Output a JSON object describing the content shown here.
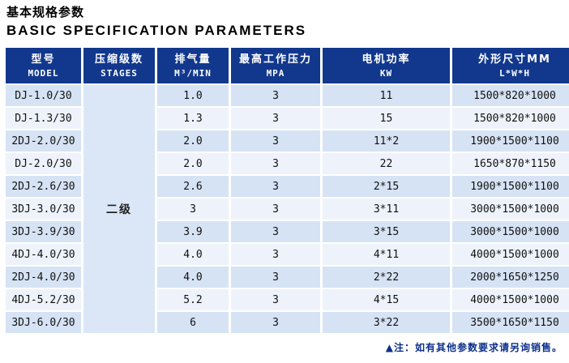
{
  "page": {
    "title_cn": "基本规格参数",
    "title_en": "BASIC SPECIFICATION PARAMETERS"
  },
  "colors": {
    "header_bg": "#12388e",
    "header_text": "#ffffff",
    "row_odd_bg": "#d6e3f4",
    "row_even_bg": "#eef3fb",
    "stages_bg": "#dbe7f7",
    "note_color": "#0b2f8a"
  },
  "table": {
    "columns": [
      {
        "cn": "型号",
        "en": "MODEL"
      },
      {
        "cn": "压缩级数",
        "en": "STAGES"
      },
      {
        "cn": "排气量",
        "en": "M³/MIN"
      },
      {
        "cn": "最高工作压力",
        "en": "MPA"
      },
      {
        "cn": "电机功率",
        "en": "KW"
      },
      {
        "cn": "外形尺寸MM",
        "en": "L*W*H"
      }
    ],
    "stages_value": "二级",
    "rows": [
      {
        "model": "DJ-1.0/30",
        "displacement": "1.0",
        "pressure": "3",
        "power": "11",
        "dimensions": "1500*820*1000"
      },
      {
        "model": "DJ-1.3/30",
        "displacement": "1.3",
        "pressure": "3",
        "power": "15",
        "dimensions": "1500*820*1000"
      },
      {
        "model": "2DJ-2.0/30",
        "displacement": "2.0",
        "pressure": "3",
        "power": "11*2",
        "dimensions": "1900*1500*1100"
      },
      {
        "model": "DJ-2.0/30",
        "displacement": "2.0",
        "pressure": "3",
        "power": "22",
        "dimensions": "1650*870*1150"
      },
      {
        "model": "2DJ-2.6/30",
        "displacement": "2.6",
        "pressure": "3",
        "power": "2*15",
        "dimensions": "1900*1500*1100"
      },
      {
        "model": "3DJ-3.0/30",
        "displacement": "3",
        "pressure": "3",
        "power": "3*11",
        "dimensions": "3000*1500*1000"
      },
      {
        "model": "3DJ-3.9/30",
        "displacement": "3.9",
        "pressure": "3",
        "power": "3*15",
        "dimensions": "3000*1500*1000"
      },
      {
        "model": "4DJ-4.0/30",
        "displacement": "4.0",
        "pressure": "3",
        "power": "4*11",
        "dimensions": "4000*1500*1000"
      },
      {
        "model": "2DJ-4.0/30",
        "displacement": "4.0",
        "pressure": "3",
        "power": "2*22",
        "dimensions": "2000*1650*1250"
      },
      {
        "model": "4DJ-5.2/30",
        "displacement": "5.2",
        "pressure": "3",
        "power": "4*15",
        "dimensions": "4000*1500*1000"
      },
      {
        "model": "3DJ-6.0/30",
        "displacement": "6",
        "pressure": "3",
        "power": "3*22",
        "dimensions": "3500*1650*1150"
      }
    ]
  },
  "note": "▲注：如有其他参数要求请另询销售。"
}
